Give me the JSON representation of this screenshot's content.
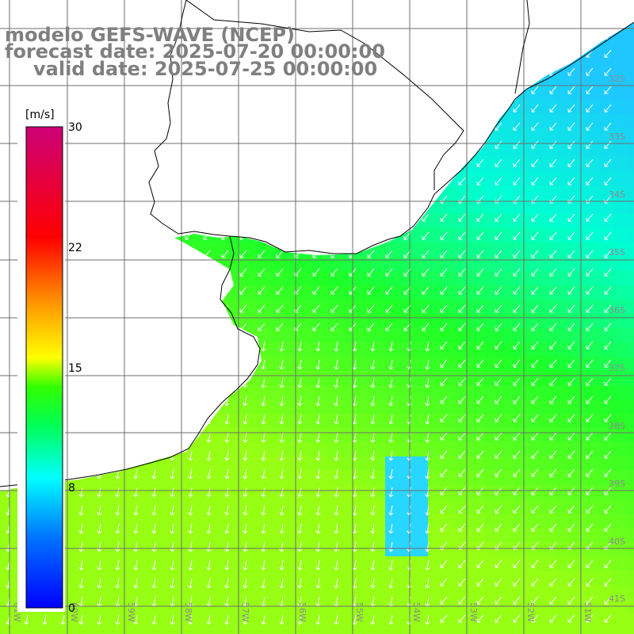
{
  "title": {
    "model": "modelo GEFS-WAVE (NCEP)",
    "forecast": "forecast date: 2025-07-20 00:00:00",
    "valid": "valid date: 2025-07-25 00:00:00"
  },
  "colorbar": {
    "unit": "[m/s]",
    "ticks": [
      "30",
      "22",
      "15",
      "8",
      "0"
    ],
    "stops": [
      "#0000ff",
      "#00aaff",
      "#00ffff",
      "#00ff00",
      "#66ff00",
      "#ffff00",
      "#ff9900",
      "#ff0000",
      "#cc0066"
    ]
  },
  "axes": {
    "lat_labels": [
      "32S",
      "33S",
      "34S",
      "35S",
      "36S",
      "37S",
      "38S",
      "39S",
      "40S",
      "41S"
    ],
    "lon_labels": [
      "61W",
      "60W",
      "59W",
      "58W",
      "57W",
      "56W",
      "55W",
      "54W",
      "53W",
      "52W",
      "51W"
    ]
  },
  "colors": {
    "land": "#ffffff",
    "grid": "#6e6e6e",
    "coast": "#000000",
    "arrow": "#ffffff"
  }
}
